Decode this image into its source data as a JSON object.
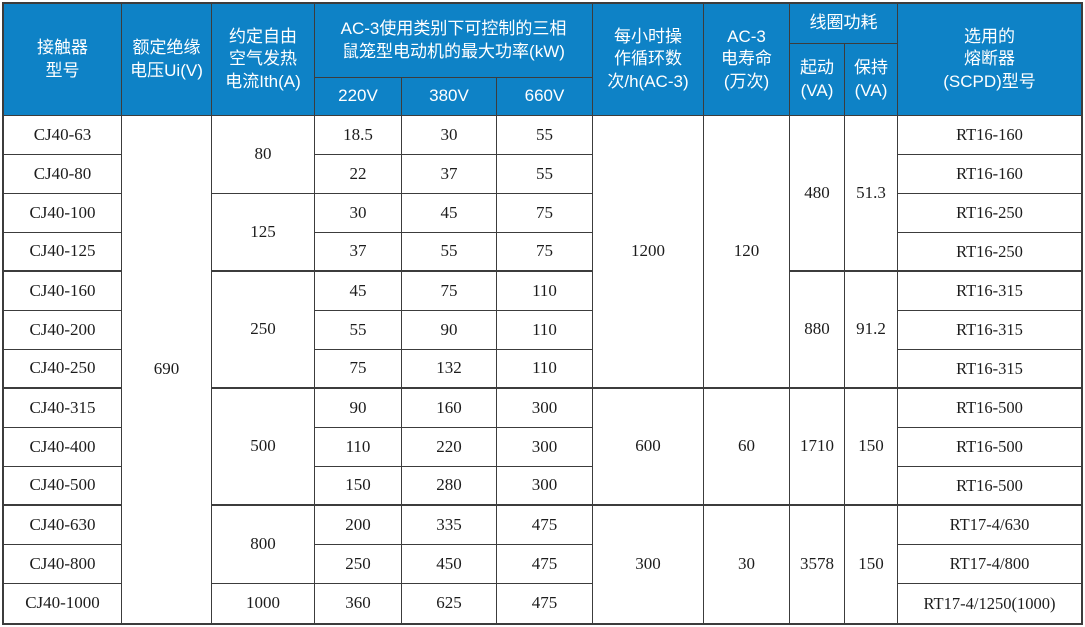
{
  "colors": {
    "header_bg": "#0e82c6",
    "header_text": "#ffffff",
    "border": "#3c3c3c",
    "body_text": "#1c1c1c",
    "body_bg": "#ffffff"
  },
  "header": {
    "model": "接触器\n型号",
    "insulation_voltage": "额定绝缘\n电压Ui(V)",
    "thermal_current": "约定自由\n空气发热\n电流Ith(A)",
    "power_group": "AC-3使用类别下可控制的三相\n鼠笼型电动机的最大功率(kW)",
    "v220": "220V",
    "v380": "380V",
    "v660": "660V",
    "cycles": "每小时操\n作循环数\n次/h(AC-3)",
    "life": "AC-3\n电寿命\n(万次)",
    "coil_group": "线圈功耗",
    "coil_start": "起动\n(VA)",
    "coil_hold": "保持\n(VA)",
    "fuse": "选用的\n熔断器\n(SCPD)型号"
  },
  "body": {
    "insulation_voltage": "690",
    "models": [
      "CJ40-63",
      "CJ40-80",
      "CJ40-100",
      "CJ40-125",
      "CJ40-160",
      "CJ40-200",
      "CJ40-250",
      "CJ40-315",
      "CJ40-400",
      "CJ40-500",
      "CJ40-630",
      "CJ40-800",
      "CJ40-1000"
    ],
    "thermal_currents": [
      "80",
      "125",
      "250",
      "500",
      "800",
      "1000"
    ],
    "p220": [
      "18.5",
      "22",
      "30",
      "37",
      "45",
      "55",
      "75",
      "90",
      "110",
      "150",
      "200",
      "250",
      "360"
    ],
    "p380": [
      "30",
      "37",
      "45",
      "55",
      "75",
      "90",
      "132",
      "160",
      "220",
      "280",
      "335",
      "450",
      "625"
    ],
    "p660": [
      "55",
      "55",
      "75",
      "75",
      "110",
      "110",
      "110",
      "300",
      "300",
      "300",
      "475",
      "475",
      "475"
    ],
    "cycles": [
      "1200",
      "600",
      "300"
    ],
    "life": [
      "120",
      "60",
      "30"
    ],
    "coil_start": [
      "480",
      "880",
      "1710",
      "3578"
    ],
    "coil_hold": [
      "51.3",
      "91.2",
      "150",
      "150"
    ],
    "fuses": [
      "RT16-160",
      "RT16-160",
      "RT16-250",
      "RT16-250",
      "RT16-315",
      "RT16-315",
      "RT16-315",
      "RT16-500",
      "RT16-500",
      "RT16-500",
      "RT17-4/630",
      "RT17-4/800",
      "RT17-4/1250(1000)"
    ]
  }
}
